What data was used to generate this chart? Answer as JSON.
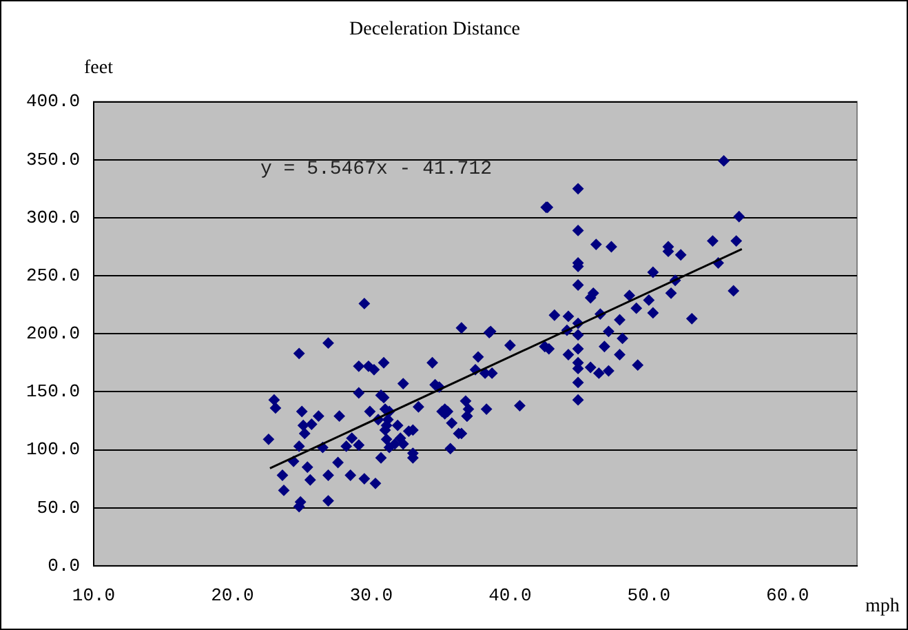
{
  "chart_data": {
    "type": "scatter",
    "title": "Deceleration Distance",
    "xlabel": "mph",
    "ylabel": "feet",
    "xlim": [
      10,
      65
    ],
    "xticks": [
      {
        "value": 10,
        "label": "10.0"
      },
      {
        "value": 20,
        "label": "20.0"
      },
      {
        "value": 30,
        "label": "30.0"
      },
      {
        "value": 40,
        "label": "40.0"
      },
      {
        "value": 50,
        "label": "50.0"
      },
      {
        "value": 60,
        "label": "60.0"
      }
    ],
    "ylim": [
      0,
      400
    ],
    "yticks": [
      {
        "value": 0,
        "label": "0.0"
      },
      {
        "value": 50,
        "label": "50.0"
      },
      {
        "value": 100,
        "label": "100.0"
      },
      {
        "value": 150,
        "label": "150.0"
      },
      {
        "value": 200,
        "label": "200.0"
      },
      {
        "value": 250,
        "label": "250.0"
      },
      {
        "value": 300,
        "label": "300.0"
      },
      {
        "value": 350,
        "label": "350.0"
      },
      {
        "value": 400,
        "label": "400.0"
      }
    ],
    "grid": "y",
    "legend": false,
    "marker": "diamond",
    "annotations": [
      "y = 5.5467x - 41.712"
    ],
    "series": [
      {
        "color": "#000080",
        "x": [
          22.6,
          23.0,
          23.1,
          23.7,
          23.6,
          24.4,
          24.8,
          24.8,
          24.8,
          24.9,
          25.2,
          25.0,
          25.1,
          25.4,
          25.6,
          25.7,
          26.2,
          26.5,
          26.9,
          26.9,
          26.9,
          27.6,
          27.7,
          28.2,
          28.5,
          28.6,
          29.1,
          29.1,
          29.1,
          29.5,
          29.5,
          29.8,
          30.2,
          29.9,
          30.3,
          30.5,
          30.7,
          30.9,
          30.7,
          30.9,
          31.0,
          31.1,
          31.2,
          31.3,
          31.3,
          31.0,
          31.1,
          31.7,
          31.9,
          32.1,
          32.3,
          32.3,
          32.7,
          33.0,
          33.0,
          33.0,
          33.4,
          34.4,
          34.6,
          35.1,
          35.3,
          35.7,
          35.8,
          36.5,
          36.5,
          36.8,
          36.9,
          37.0,
          37.5,
          37.7,
          38.2,
          38.5,
          38.6,
          38.7,
          40.0,
          40.7,
          42.5,
          42.6,
          42.7,
          43.2,
          44.9,
          44.9,
          44.9,
          44.9,
          44.9,
          46.2,
          47.3,
          46.0,
          45.8,
          50.3,
          51.4,
          51.4,
          52.3,
          54.6,
          55.4,
          56.5,
          56.3,
          55.0,
          56.1,
          51.9,
          51.6,
          50.0,
          50.3,
          48.6,
          49.1,
          53.1,
          47.9,
          46.5,
          44.2,
          44.1,
          44.9,
          47.1,
          48.1,
          46.8,
          44.9,
          44.2,
          42.8,
          44.9,
          47.9,
          44.9,
          44.9,
          45.8,
          46.4,
          47.1,
          49.2,
          44.9,
          44.9,
          36.3,
          35.3,
          35.5,
          34.9,
          38.3,
          36.9
        ],
        "values": [
          109,
          143,
          136,
          65,
          78,
          90,
          103,
          183,
          51,
          55,
          114,
          133,
          121,
          85,
          74,
          122,
          129,
          102,
          192,
          78,
          56,
          89,
          129,
          103,
          78,
          110,
          104,
          149,
          172,
          75,
          226,
          172,
          169,
          133,
          71,
          126,
          93,
          175,
          147,
          145,
          117,
          109,
          126,
          102,
          133,
          135,
          121,
          105,
          121,
          110,
          157,
          105,
          116,
          97,
          93,
          117,
          137,
          175,
          156,
          133,
          131,
          101,
          123,
          205,
          114,
          142,
          129,
          135,
          169,
          180,
          166,
          201,
          202,
          166,
          190,
          138,
          189,
          309,
          309,
          216,
          325,
          289,
          261,
          258,
          242,
          277,
          275,
          235,
          231,
          253,
          275,
          271,
          268,
          280,
          349,
          301,
          280,
          261,
          237,
          246,
          235,
          229,
          218,
          233,
          222,
          213,
          212,
          217,
          215,
          203,
          209,
          202,
          196,
          189,
          199,
          182,
          187,
          187,
          182,
          175,
          170,
          171,
          166,
          168,
          173,
          158,
          143,
          114,
          135,
          133,
          154,
          135,
          129
        ]
      },
      {
        "type": "line",
        "color": "#000000",
        "marker": "none",
        "line_style": "solid",
        "x": [
          22.7,
          56.7
        ],
        "values": [
          84,
          273
        ]
      }
    ]
  }
}
